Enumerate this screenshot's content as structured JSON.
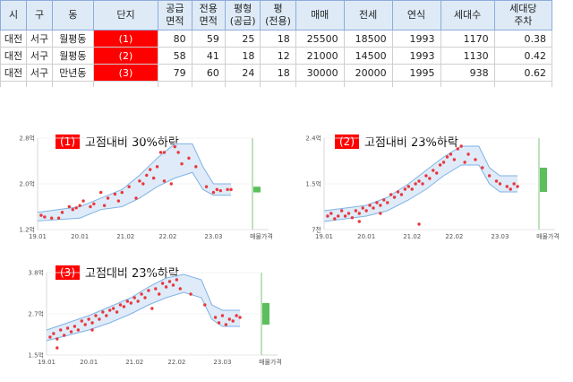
{
  "table": {
    "headers": [
      "시",
      "구",
      "동",
      "단지",
      "공급\n면적",
      "전용\n면적",
      "평형\n(공급)",
      "평\n(전용)",
      "매매",
      "전세",
      "연식",
      "세대수",
      "세대당\n주차"
    ],
    "rows": [
      [
        "대전",
        "서구",
        "월평동",
        "(1)",
        "80",
        "59",
        "25",
        "18",
        "25500",
        "18500",
        "1993",
        "1170",
        "0.38"
      ],
      [
        "대전",
        "서구",
        "월평동",
        "(2)",
        "58",
        "41",
        "18",
        "12",
        "21000",
        "14500",
        "1993",
        "1130",
        "0.42"
      ],
      [
        "대전",
        "서구",
        "만년동",
        "(3)",
        "79",
        "60",
        "24",
        "18",
        "30000",
        "20000",
        "1995",
        "938",
        "0.62"
      ]
    ]
  },
  "colors": {
    "scatter": "#e8383d",
    "band_fill": "#dce9f7",
    "band_line": "#7fb3e6",
    "asking": "#5cbf5c",
    "vline": "#7cc47c",
    "badge": "#ff0000"
  },
  "chart_data": [
    {
      "type": "scatter",
      "badge": "(1)",
      "title": "고점대비 30%하락",
      "y_ticks": [
        "1.2억",
        "2.0억",
        "2.8억"
      ],
      "ylim": [
        1.2,
        2.8
      ],
      "x_ticks": [
        "19.01",
        "20.01",
        "21.02",
        "22.02",
        "23.03",
        "매물가격"
      ],
      "points": [
        [
          "2019-02",
          1.45
        ],
        [
          "2019-03",
          1.42
        ],
        [
          "2019-05",
          1.4
        ],
        [
          "2019-07",
          1.4
        ],
        [
          "2019-08",
          1.5
        ],
        [
          "2019-10",
          1.6
        ],
        [
          "2019-11",
          1.55
        ],
        [
          "2019-12",
          1.58
        ],
        [
          "2020-01",
          1.62
        ],
        [
          "2020-02",
          1.7
        ],
        [
          "2020-04",
          1.6
        ],
        [
          "2020-05",
          1.65
        ],
        [
          "2020-07",
          1.85
        ],
        [
          "2020-08",
          1.62
        ],
        [
          "2020-09",
          1.75
        ],
        [
          "2020-11",
          1.82
        ],
        [
          "2020-12",
          1.7
        ],
        [
          "2021-01",
          1.85
        ],
        [
          "2021-03",
          1.95
        ],
        [
          "2021-05",
          1.75
        ],
        [
          "2021-06",
          2.05
        ],
        [
          "2021-07",
          2.0
        ],
        [
          "2021-08",
          2.15
        ],
        [
          "2021-09",
          2.25
        ],
        [
          "2021-10",
          2.1
        ],
        [
          "2021-11",
          2.3
        ],
        [
          "2021-12",
          2.55
        ],
        [
          "2022-01",
          2.55
        ],
        [
          "2022-01",
          2.05
        ],
        [
          "2022-03",
          2.0
        ],
        [
          "2022-04",
          2.65
        ],
        [
          "2022-05",
          2.55
        ],
        [
          "2022-06",
          2.35
        ],
        [
          "2022-08",
          2.45
        ],
        [
          "2022-10",
          2.3
        ],
        [
          "2023-01",
          1.95
        ],
        [
          "2023-03",
          1.85
        ],
        [
          "2023-04",
          1.9
        ],
        [
          "2023-05",
          1.88
        ],
        [
          "2023-07",
          1.9
        ],
        [
          "2023-08",
          1.9
        ]
      ],
      "band_upper": [
        [
          "2019-01",
          1.5
        ],
        [
          "2020-01",
          1.6
        ],
        [
          "2020-07",
          1.75
        ],
        [
          "2021-01",
          1.9
        ],
        [
          "2021-06",
          2.15
        ],
        [
          "2021-11",
          2.45
        ],
        [
          "2022-04",
          2.7
        ],
        [
          "2022-09",
          2.7
        ],
        [
          "2022-12",
          2.3
        ],
        [
          "2023-03",
          2.0
        ],
        [
          "2023-08",
          2.0
        ]
      ],
      "band_lower": [
        [
          "2019-01",
          1.35
        ],
        [
          "2020-01",
          1.4
        ],
        [
          "2020-07",
          1.55
        ],
        [
          "2021-01",
          1.6
        ],
        [
          "2021-06",
          1.75
        ],
        [
          "2021-11",
          1.95
        ],
        [
          "2022-04",
          2.1
        ],
        [
          "2022-09",
          2.2
        ],
        [
          "2022-12",
          1.9
        ],
        [
          "2023-03",
          1.8
        ],
        [
          "2023-08",
          1.8
        ]
      ],
      "asking": [
        1.85,
        1.95
      ]
    },
    {
      "type": "scatter",
      "badge": "(2)",
      "title": "고점대비 23%하락",
      "y_ticks": [
        "7천",
        "1.5억",
        "2.4억"
      ],
      "ylim": [
        0.7,
        2.4
      ],
      "x_ticks": [
        "19.01",
        "20.01",
        "21.02",
        "22.02",
        "23.03",
        "매물가격"
      ],
      "points": [
        [
          "2019-02",
          0.95
        ],
        [
          "2019-03",
          1.0
        ],
        [
          "2019-04",
          0.9
        ],
        [
          "2019-05",
          0.95
        ],
        [
          "2019-06",
          1.05
        ],
        [
          "2019-07",
          0.95
        ],
        [
          "2019-08",
          1.0
        ],
        [
          "2019-09",
          0.92
        ],
        [
          "2019-10",
          1.05
        ],
        [
          "2019-11",
          1.0
        ],
        [
          "2019-12",
          1.1
        ],
        [
          "2020-01",
          1.05
        ],
        [
          "2020-02",
          1.15
        ],
        [
          "2020-03",
          1.1
        ],
        [
          "2020-04",
          1.2
        ],
        [
          "2020-05",
          1.15
        ],
        [
          "2020-06",
          1.25
        ],
        [
          "2020-07",
          1.2
        ],
        [
          "2020-08",
          1.35
        ],
        [
          "2020-09",
          1.3
        ],
        [
          "2020-10",
          1.4
        ],
        [
          "2020-11",
          1.35
        ],
        [
          "2020-12",
          1.45
        ],
        [
          "2021-01",
          1.5
        ],
        [
          "2021-02",
          1.45
        ],
        [
          "2021-03",
          1.55
        ],
        [
          "2021-04",
          1.6
        ],
        [
          "2021-05",
          1.55
        ],
        [
          "2021-06",
          1.7
        ],
        [
          "2021-07",
          1.65
        ],
        [
          "2021-08",
          1.8
        ],
        [
          "2021-09",
          1.75
        ],
        [
          "2021-10",
          1.9
        ],
        [
          "2021-11",
          1.95
        ],
        [
          "2021-12",
          2.05
        ],
        [
          "2022-01",
          2.1
        ],
        [
          "2022-02",
          2.0
        ],
        [
          "2022-03",
          2.2
        ],
        [
          "2022-04",
          2.25
        ],
        [
          "2022-05",
          1.95
        ],
        [
          "2022-06",
          2.1
        ],
        [
          "2022-08",
          2.0
        ],
        [
          "2022-10",
          1.85
        ],
        [
          "2022-12",
          1.7
        ],
        [
          "2023-02",
          1.6
        ],
        [
          "2023-03",
          1.55
        ],
        [
          "2023-05",
          1.5
        ],
        [
          "2023-06",
          1.45
        ],
        [
          "2023-07",
          1.55
        ],
        [
          "2023-08",
          1.5
        ],
        [
          "2021-04",
          0.8
        ],
        [
          "2020-05",
          1.0
        ],
        [
          "2019-11",
          0.85
        ]
      ],
      "band_upper": [
        [
          "2019-01",
          1.05
        ],
        [
          "2020-01",
          1.15
        ],
        [
          "2020-07",
          1.3
        ],
        [
          "2021-01",
          1.55
        ],
        [
          "2021-06",
          1.8
        ],
        [
          "2021-11",
          2.05
        ],
        [
          "2022-04",
          2.25
        ],
        [
          "2022-09",
          2.25
        ],
        [
          "2022-12",
          1.85
        ],
        [
          "2023-03",
          1.7
        ],
        [
          "2023-08",
          1.7
        ]
      ],
      "band_lower": [
        [
          "2019-01",
          0.85
        ],
        [
          "2020-01",
          0.95
        ],
        [
          "2020-07",
          1.05
        ],
        [
          "2021-01",
          1.25
        ],
        [
          "2021-06",
          1.45
        ],
        [
          "2021-11",
          1.7
        ],
        [
          "2022-04",
          1.9
        ],
        [
          "2022-09",
          1.9
        ],
        [
          "2022-12",
          1.55
        ],
        [
          "2023-03",
          1.4
        ],
        [
          "2023-08",
          1.4
        ]
      ],
      "asking": [
        1.4,
        1.85
      ]
    },
    {
      "type": "scatter",
      "badge": "(3)",
      "title": "고점대비 23%하락",
      "y_ticks": [
        "1.5억",
        "2.7억",
        "3.8억"
      ],
      "ylim": [
        1.5,
        3.8
      ],
      "x_ticks": [
        "19.01",
        "20.01",
        "21.02",
        "22.02",
        "23.03",
        "매물가격"
      ],
      "points": [
        [
          "2019-02",
          2.0
        ],
        [
          "2019-03",
          2.1
        ],
        [
          "2019-04",
          1.95
        ],
        [
          "2019-05",
          2.2
        ],
        [
          "2019-06",
          2.05
        ],
        [
          "2019-07",
          2.25
        ],
        [
          "2019-08",
          2.15
        ],
        [
          "2019-09",
          2.3
        ],
        [
          "2019-10",
          2.2
        ],
        [
          "2019-11",
          2.45
        ],
        [
          "2019-12",
          2.35
        ],
        [
          "2020-01",
          2.5
        ],
        [
          "2020-02",
          2.4
        ],
        [
          "2020-03",
          2.6
        ],
        [
          "2020-04",
          2.5
        ],
        [
          "2020-05",
          2.7
        ],
        [
          "2020-06",
          2.6
        ],
        [
          "2020-07",
          2.75
        ],
        [
          "2020-08",
          2.8
        ],
        [
          "2020-09",
          2.7
        ],
        [
          "2020-10",
          2.9
        ],
        [
          "2020-11",
          2.85
        ],
        [
          "2020-12",
          3.0
        ],
        [
          "2021-01",
          2.95
        ],
        [
          "2021-02",
          3.1
        ],
        [
          "2021-03",
          3.0
        ],
        [
          "2021-04",
          3.2
        ],
        [
          "2021-05",
          3.1
        ],
        [
          "2021-06",
          3.3
        ],
        [
          "2021-07",
          2.8
        ],
        [
          "2021-08",
          3.35
        ],
        [
          "2021-09",
          3.2
        ],
        [
          "2021-10",
          3.5
        ],
        [
          "2021-11",
          3.4
        ],
        [
          "2021-12",
          3.55
        ],
        [
          "2022-01",
          3.45
        ],
        [
          "2022-02",
          3.6
        ],
        [
          "2022-03",
          3.35
        ],
        [
          "2022-06",
          3.2
        ],
        [
          "2022-10",
          2.9
        ],
        [
          "2023-01",
          2.55
        ],
        [
          "2023-02",
          2.4
        ],
        [
          "2023-03",
          2.6
        ],
        [
          "2023-04",
          2.35
        ],
        [
          "2023-05",
          2.5
        ],
        [
          "2023-06",
          2.45
        ],
        [
          "2023-07",
          2.6
        ],
        [
          "2023-08",
          2.55
        ],
        [
          "2019-04",
          1.7
        ],
        [
          "2020-02",
          2.2
        ]
      ],
      "band_upper": [
        [
          "2019-01",
          2.2
        ],
        [
          "2020-01",
          2.6
        ],
        [
          "2020-07",
          2.85
        ],
        [
          "2021-01",
          3.1
        ],
        [
          "2021-06",
          3.4
        ],
        [
          "2021-11",
          3.65
        ],
        [
          "2022-04",
          3.75
        ],
        [
          "2022-09",
          3.6
        ],
        [
          "2022-12",
          2.9
        ],
        [
          "2023-03",
          2.75
        ],
        [
          "2023-08",
          2.75
        ]
      ],
      "band_lower": [
        [
          "2019-01",
          1.9
        ],
        [
          "2020-01",
          2.2
        ],
        [
          "2020-07",
          2.4
        ],
        [
          "2021-01",
          2.65
        ],
        [
          "2021-06",
          2.9
        ],
        [
          "2021-11",
          3.1
        ],
        [
          "2022-04",
          3.25
        ],
        [
          "2022-09",
          3.1
        ],
        [
          "2022-12",
          2.5
        ],
        [
          "2023-03",
          2.3
        ],
        [
          "2023-08",
          2.3
        ]
      ],
      "asking": [
        2.35,
        2.95
      ]
    }
  ]
}
